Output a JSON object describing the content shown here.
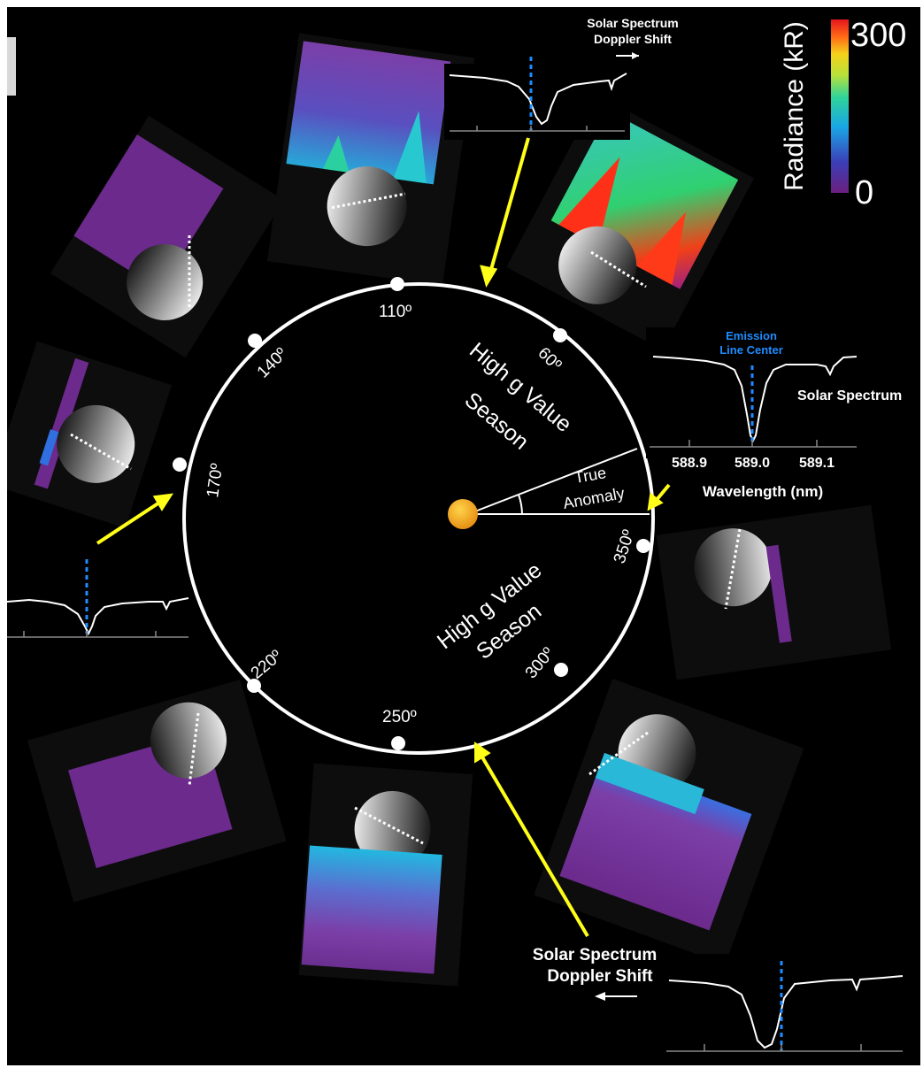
{
  "colorbar": {
    "title": "Radiance (kR)",
    "max_label": "300",
    "min_label": "0",
    "colors": [
      "#6b1f7e",
      "#3b3fb8",
      "#1aa6e6",
      "#2fd39a",
      "#b8e03a",
      "#f5d21c",
      "#ff6a16",
      "#e6151f"
    ]
  },
  "orbit": {
    "angles": [
      "110º",
      "140º",
      "170º",
      "220º",
      "250º",
      "300º",
      "350º",
      "60º"
    ],
    "season_top": [
      "High g Value",
      "Season"
    ],
    "season_bottom": [
      "High g Value",
      "Season"
    ],
    "true_anomaly": [
      "True",
      "Anomaly"
    ],
    "sun_color": "#f7a21a"
  },
  "spectrum_main": {
    "title": [
      "Emission",
      "Line Center"
    ],
    "label": "Solar Spectrum",
    "ticks": [
      "588.9",
      "589.0",
      "589.1"
    ],
    "xlabel": "Wavelength (nm)"
  },
  "doppler_top": {
    "label": [
      "Solar Spectrum",
      "Doppler Shift"
    ]
  },
  "doppler_bottom": {
    "label": [
      "Solar Spectrum",
      "Doppler Shift"
    ]
  },
  "colors": {
    "arrow": "#ffff1a",
    "marker": "#1e8cff",
    "orbit": "#ffffff"
  }
}
